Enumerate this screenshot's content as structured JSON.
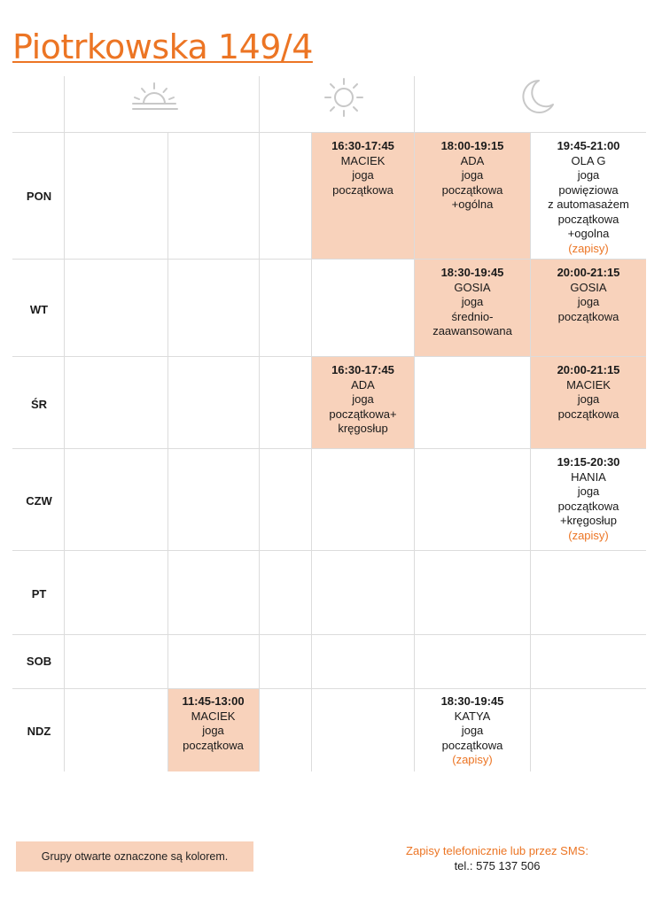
{
  "title": "Piotrkowska 149/4",
  "accent_color": "#ec7524",
  "highlight_color": "#f8d2bb",
  "header_icons": [
    "sunrise-icon",
    "sun-icon",
    "moon-icon"
  ],
  "days": [
    "PON",
    "WT",
    "ŚR",
    "CZW",
    "PT",
    "SOB",
    "NDZ"
  ],
  "classes": {
    "pon_1": {
      "time": "16:30-17:45",
      "teacher": "MACIEK",
      "l1": "joga",
      "l2": "początkowa"
    },
    "pon_2": {
      "time": "18:00-19:15",
      "teacher": "ADA",
      "l1": "joga",
      "l2": "początkowa",
      "l3": "+ogólna"
    },
    "pon_3": {
      "time": "19:45-21:00",
      "teacher": "OLA G",
      "l1": "joga",
      "l2": "powięziowa",
      "l3": "z automasażem",
      "l4": "początkowa",
      "l5": "+ogolna",
      "zapisy": "(zapisy)"
    },
    "wt_1": {
      "time": "18:30-19:45",
      "teacher": "GOSIA",
      "l1": "joga",
      "l2": "średnio-",
      "l3": "zaawansowana"
    },
    "wt_2": {
      "time": "20:00-21:15",
      "teacher": "GOSIA",
      "l1": "joga",
      "l2": "początkowa"
    },
    "sr_1": {
      "time": "16:30-17:45",
      "teacher": "ADA",
      "l1": "joga",
      "l2": "początkowa+",
      "l3": "kręgosłup"
    },
    "sr_2": {
      "time": "20:00-21:15",
      "teacher": "MACIEK",
      "l1": "joga",
      "l2": "początkowa"
    },
    "czw_1": {
      "time": "19:15-20:30",
      "teacher": "HANIA",
      "l1": "joga",
      "l2": "początkowa",
      "l3": "+kręgosłup",
      "zapisy": "(zapisy)"
    },
    "ndz_1": {
      "time": "11:45-13:00",
      "teacher": "MACIEK",
      "l1": "joga",
      "l2": "początkowa"
    },
    "ndz_2": {
      "time": "18:30-19:45",
      "teacher": "KATYA",
      "l1": "joga",
      "l2": "początkowa",
      "zapisy": "(zapisy)"
    }
  },
  "legend": "Grupy otwarte oznaczone są kolorem.",
  "footer": {
    "line1": "Zapisy telefonicznie lub przez SMS:",
    "line2": "tel.: 575 137 506"
  }
}
